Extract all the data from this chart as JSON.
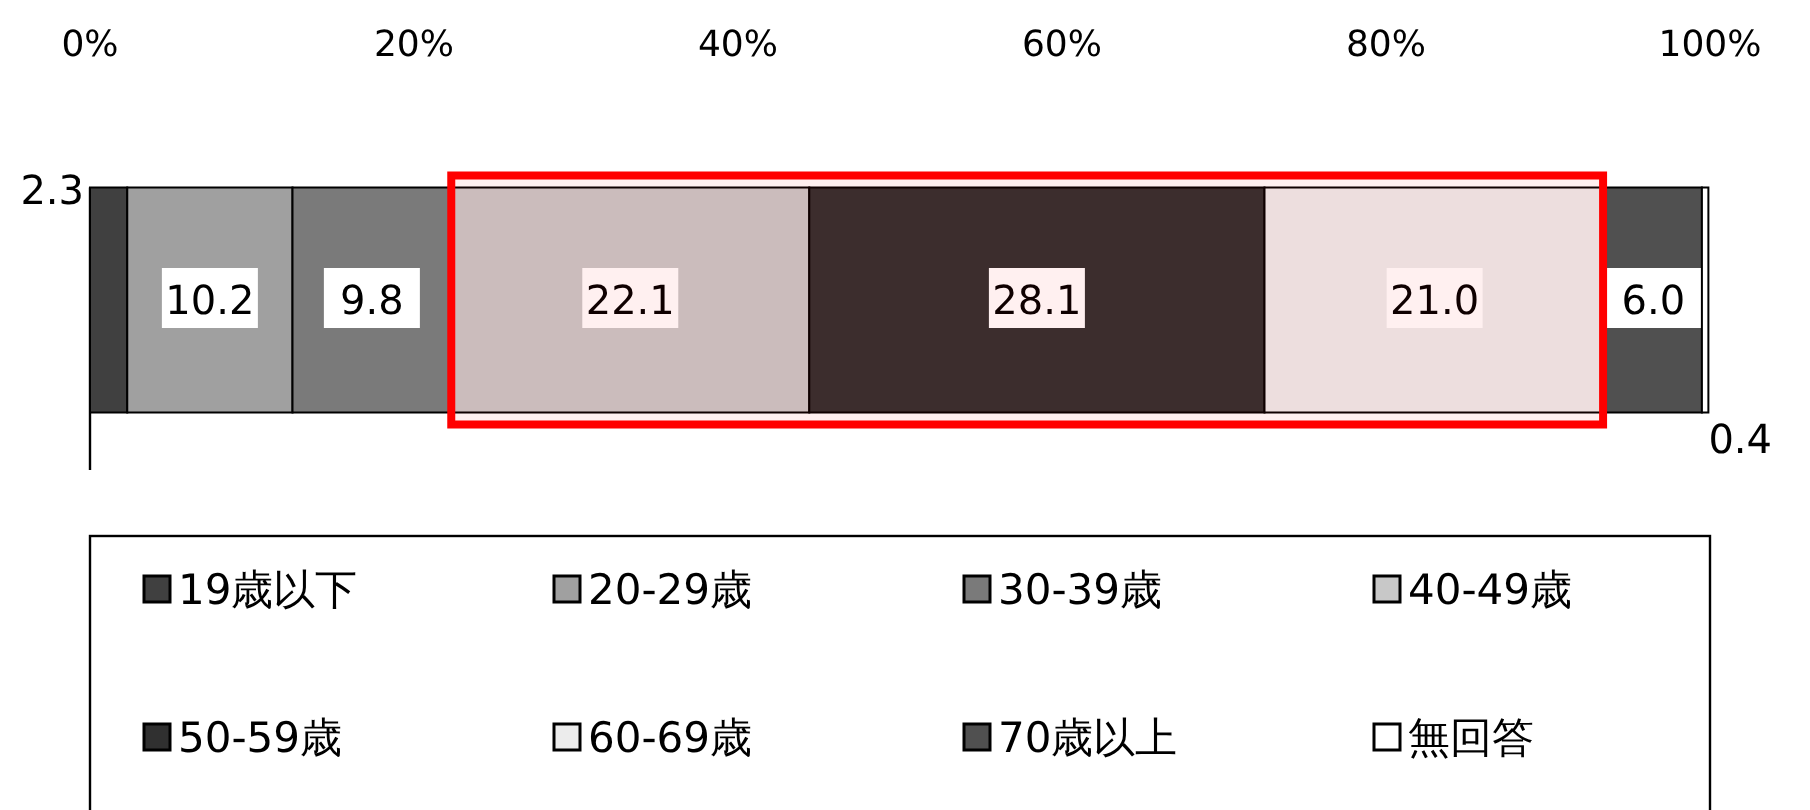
{
  "chart_data": {
    "type": "bar",
    "orientation": "horizontal",
    "stacked": true,
    "categories": [
      null
    ],
    "series": [
      {
        "name": "19歳以下",
        "color": "#404040",
        "values": [
          2.3
        ],
        "value_labels": [
          "2.3"
        ]
      },
      {
        "name": "20-29歳",
        "color": "#a0a0a0",
        "values": [
          10.2
        ],
        "value_labels": [
          "10.2"
        ]
      },
      {
        "name": "30-39歳",
        "color": "#7a7a7a",
        "values": [
          9.8
        ],
        "value_labels": [
          "9.8"
        ]
      },
      {
        "name": "40-49歳",
        "color": "#c8c8c8",
        "values": [
          22.1
        ],
        "value_labels": [
          "22.1"
        ]
      },
      {
        "name": "50-59歳",
        "color": "#303030",
        "values": [
          28.1
        ],
        "value_labels": [
          "28.1"
        ]
      },
      {
        "name": "60-69歳",
        "color": "#ececec",
        "values": [
          21.0
        ],
        "value_labels": [
          "21.0"
        ]
      },
      {
        "name": "70歳以上",
        "color": "#505050",
        "values": [
          6.0
        ],
        "value_labels": [
          "6.0"
        ]
      },
      {
        "name": "無回答",
        "color": "#ffffff",
        "values": [
          0.4
        ],
        "value_labels": [
          "0.4"
        ]
      }
    ],
    "xlim": [
      0,
      100
    ],
    "xticks": [
      {
        "value": 0,
        "label": "0%"
      },
      {
        "value": 20,
        "label": "20%"
      },
      {
        "value": 40,
        "label": "40%"
      },
      {
        "value": 60,
        "label": "60%"
      },
      {
        "value": 80,
        "label": "80%"
      },
      {
        "value": 100,
        "label": "100%"
      }
    ],
    "bands": [
      {
        "axis": "x",
        "from": 22.3,
        "to": 93.4,
        "color": "#ff0000"
      }
    ],
    "legend": "bottom",
    "grid": false
  }
}
